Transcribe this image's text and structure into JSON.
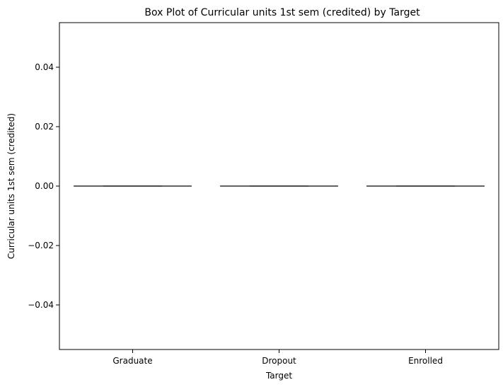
{
  "chart_data": {
    "type": "box",
    "title": "Box Plot of Curricular units 1st sem (credited) by Target",
    "xlabel": "Target",
    "ylabel": "Curricular units 1st sem (credited)",
    "categories": [
      "Graduate",
      "Dropout",
      "Enrolled"
    ],
    "ylim": [
      -0.055,
      0.055
    ],
    "yticks": [
      -0.04,
      -0.02,
      0.0,
      0.02,
      0.04
    ],
    "ytick_labels": [
      "−0.04",
      "−0.02",
      "0.00",
      "0.02",
      "0.04"
    ],
    "boxes": [
      {
        "category": "Graduate",
        "min": 0,
        "q1": 0,
        "median": 0,
        "q3": 0,
        "max": 0
      },
      {
        "category": "Dropout",
        "min": 0,
        "q1": 0,
        "median": 0,
        "q3": 0,
        "max": 0
      },
      {
        "category": "Enrolled",
        "min": 0,
        "q1": 0,
        "median": 0,
        "q3": 0,
        "max": 0
      }
    ],
    "box_color": "#4c4c4c",
    "grid": false
  }
}
